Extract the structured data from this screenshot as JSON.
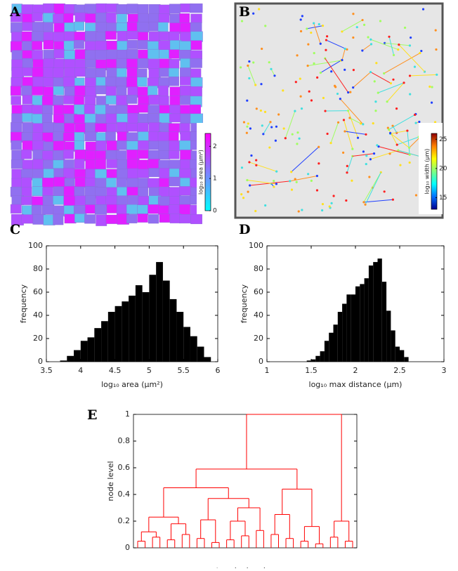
{
  "chart_data": [
    {
      "type": "image",
      "panel": "A",
      "colorbar": {
        "label": "log₁₀ area (μm²)",
        "lim": [
          0,
          2.4
        ],
        "ticks": [
          0,
          1,
          2
        ],
        "colors": [
          "#00ffff",
          "#ff00ff"
        ]
      }
    },
    {
      "type": "image",
      "panel": "B",
      "colorbar": {
        "label": "log₁₀ width (μm)",
        "lim": [
          13,
          26
        ],
        "ticks": [
          15,
          20,
          25
        ],
        "colors": [
          "#00008f",
          "#0070ff",
          "#00ffff",
          "#80ff80",
          "#ffff00",
          "#ff8000",
          "#8f0000"
        ]
      }
    },
    {
      "type": "histogram",
      "panel": "C",
      "xlabel": "log₁₀ area (μm²)",
      "ylabel": "frequency",
      "color": "#000000",
      "bins": [
        3.7,
        3.8,
        3.9,
        4.0,
        4.1,
        4.2,
        4.3,
        4.4,
        4.5,
        4.6,
        4.7,
        4.8,
        4.9,
        5.0,
        5.1,
        5.2,
        5.3,
        5.4,
        5.5,
        5.6,
        5.7,
        5.8,
        5.9
      ],
      "values": [
        1,
        5,
        10,
        18,
        21,
        29,
        35,
        43,
        48,
        52,
        57,
        66,
        60,
        75,
        86,
        70,
        54,
        43,
        30,
        22,
        13,
        4
      ],
      "xlim": [
        3.5,
        6
      ],
      "xticks": [
        3.5,
        4,
        4.5,
        5,
        5.5,
        6
      ],
      "ylim": [
        0,
        100
      ],
      "yticks": [
        0,
        20,
        40,
        60,
        80,
        100
      ]
    },
    {
      "type": "histogram",
      "panel": "D",
      "xlabel": "log₁₀ max distance (μm)",
      "ylabel": "frequency",
      "color": "#000000",
      "bins": [
        1.45,
        1.5,
        1.55,
        1.6,
        1.65,
        1.7,
        1.75,
        1.8,
        1.85,
        1.9,
        1.95,
        2.0,
        2.05,
        2.1,
        2.15,
        2.2,
        2.25,
        2.3,
        2.35,
        2.4,
        2.45,
        2.5,
        2.55,
        2.6
      ],
      "values": [
        1,
        2,
        5,
        9,
        18,
        25,
        32,
        43,
        50,
        58,
        58,
        65,
        67,
        72,
        83,
        86,
        89,
        69,
        44,
        27,
        13,
        10,
        4
      ],
      "xlim": [
        1,
        3
      ],
      "xticks": [
        1,
        1.5,
        2,
        2.5,
        3
      ],
      "ylim": [
        0,
        100
      ],
      "yticks": [
        0,
        20,
        40,
        60,
        80,
        100
      ]
    },
    {
      "type": "dendrogram",
      "panel": "E",
      "xlabel": "terminal nodes",
      "ylabel": "node level",
      "color": "#ff0000",
      "ylim": [
        0,
        1
      ],
      "yticks": [
        0,
        0.2,
        0.4,
        0.6,
        0.8,
        1
      ],
      "tree": {
        "height": 1,
        "children": [
          {
            "height": 0.59,
            "children": [
              {
                "height": 0.45,
                "children": [
                  {
                    "height": 0.23,
                    "children": [
                      {
                        "height": 0.12,
                        "children": [
                          {
                            "height": 0.05
                          },
                          {
                            "height": 0.08
                          }
                        ]
                      },
                      {
                        "height": 0.18,
                        "children": [
                          {
                            "height": 0.06
                          },
                          {
                            "height": 0.1
                          }
                        ]
                      }
                    ]
                  },
                  {
                    "height": 0.37,
                    "children": [
                      {
                        "height": 0.21,
                        "children": [
                          {
                            "height": 0.07
                          },
                          {
                            "height": 0.04
                          }
                        ]
                      },
                      {
                        "height": 0.3,
                        "children": [
                          {
                            "height": 0.2,
                            "children": [
                              {
                                "height": 0.06
                              },
                              {
                                "height": 0.09
                              }
                            ]
                          },
                          {
                            "height": 0.13
                          }
                        ]
                      }
                    ]
                  }
                ]
              },
              {
                "height": 0.44,
                "children": [
                  {
                    "height": 0.25,
                    "children": [
                      {
                        "height": 0.1
                      },
                      {
                        "height": 0.07
                      }
                    ]
                  },
                  {
                    "height": 0.16,
                    "children": [
                      {
                        "height": 0.05
                      },
                      {
                        "height": 0.03
                      }
                    ]
                  }
                ]
              }
            ]
          },
          {
            "height": 0.2,
            "children": [
              {
                "height": 0.08
              },
              {
                "height": 0.05
              }
            ]
          }
        ]
      }
    }
  ]
}
